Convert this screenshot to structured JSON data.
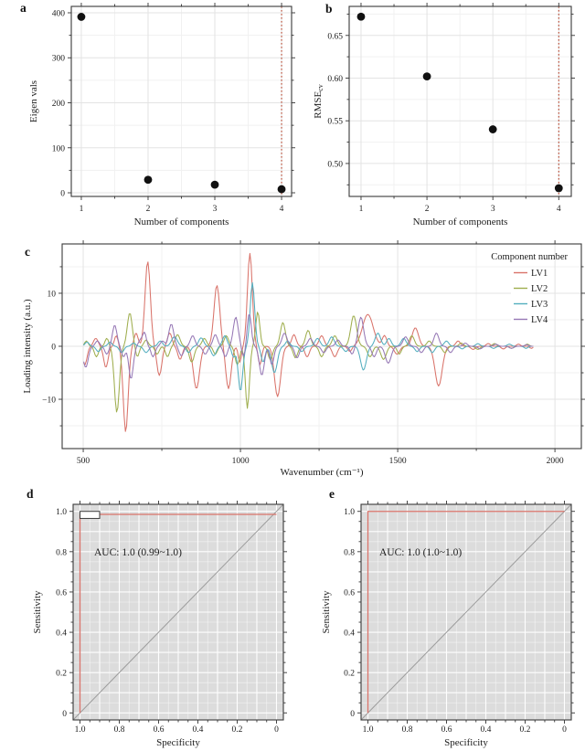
{
  "figure": {
    "panels": {
      "a": {
        "label": "a"
      },
      "b": {
        "label": "b"
      },
      "c": {
        "label": "c"
      },
      "d": {
        "label": "d"
      },
      "e": {
        "label": "e"
      }
    }
  },
  "chart_data": [
    {
      "panel": "a",
      "type": "scatter",
      "xlabel": "Number of components",
      "ylabel": "Eigen vals",
      "x": [
        1,
        2,
        3,
        4
      ],
      "y": [
        391,
        29,
        18,
        8
      ],
      "xticks": [
        1,
        2,
        3,
        4
      ],
      "xtick_labels": [
        "1",
        "2",
        "3",
        "4"
      ],
      "xticks_minor": [
        1.5,
        2.5,
        3.5
      ],
      "yticks": [
        0,
        100,
        200,
        300,
        400
      ],
      "ytick_labels": [
        "0",
        "100",
        "200",
        "300",
        "400"
      ],
      "yticks_minor": [
        50,
        150,
        250,
        350
      ],
      "xlim": [
        0.85,
        4.15
      ],
      "ylim": [
        -8.1,
        414.2
      ],
      "vline_x": 4,
      "vline_color": "#b5432c",
      "point_color": "#111111",
      "grid": true
    },
    {
      "panel": "b",
      "type": "scatter",
      "xlabel": "Number of components",
      "ylabel": "RMSE",
      "ylabel_sub": "cv",
      "x": [
        1,
        2,
        3,
        4
      ],
      "y": [
        0.672,
        0.602,
        0.54,
        0.471
      ],
      "xticks": [
        1,
        2,
        3,
        4
      ],
      "xtick_labels": [
        "1",
        "2",
        "3",
        "4"
      ],
      "xticks_minor": [
        1.5,
        2.5,
        3.5
      ],
      "yticks": [
        0.5,
        0.55,
        0.6,
        0.65
      ],
      "ytick_labels": [
        "0.50",
        "0.55",
        "0.60",
        "0.65"
      ],
      "yticks_minor": [
        0.475,
        0.525,
        0.575,
        0.625,
        0.675
      ],
      "xlim": [
        0.82,
        4.19
      ],
      "ylim": [
        0.4614,
        0.684
      ],
      "vline_x": 4,
      "vline_color": "#b5432c",
      "point_color": "#111111",
      "grid": true
    },
    {
      "panel": "c",
      "type": "line",
      "xlabel": "Wavenumber (cm⁻¹)",
      "ylabel": "Loading intensity (a.u.)",
      "legend_title": "Component number",
      "xticks": [
        500,
        1000,
        1500,
        2000
      ],
      "xtick_labels": [
        "500",
        "1000",
        "1500",
        "2000"
      ],
      "xticks_minor": [
        750,
        1250,
        1750
      ],
      "yticks": [
        -10,
        0,
        10
      ],
      "ytick_labels": [
        "−10",
        "0",
        "10"
      ],
      "yticks_minor": [
        -15,
        -5,
        5,
        15
      ],
      "xlim": [
        433,
        2084
      ],
      "ylim": [
        -19.3,
        19.3
      ],
      "x_range": [
        502,
        1932
      ],
      "x_step": 4,
      "series": [
        {
          "name": "LV1",
          "color": "#d9736a",
          "peaks": [
            [
              505,
              -3.5,
              10
            ],
            [
              540,
              1.5,
              10
            ],
            [
              572,
              -4,
              10
            ],
            [
              605,
              2,
              8
            ],
            [
              635,
              -16.2,
              11
            ],
            [
              668,
              2.5,
              9
            ],
            [
              705,
              16,
              12
            ],
            [
              742,
              -5.5,
              11
            ],
            [
              775,
              2.5,
              10
            ],
            [
              808,
              -2.5,
              10
            ],
            [
              860,
              -8,
              14
            ],
            [
              925,
              11.5,
              13
            ],
            [
              962,
              -8,
              12
            ],
            [
              998,
              -3,
              7
            ],
            [
              1030,
              17.5,
              11
            ],
            [
              1062,
              -3.5,
              8
            ],
            [
              1118,
              -9.5,
              14
            ],
            [
              1170,
              2.2,
              10
            ],
            [
              1212,
              -2,
              10
            ],
            [
              1258,
              2,
              11
            ],
            [
              1300,
              -2,
              11
            ],
            [
              1348,
              -1,
              9
            ],
            [
              1405,
              6,
              24
            ],
            [
              1458,
              2,
              10
            ],
            [
              1498,
              -1.5,
              12
            ],
            [
              1556,
              3.5,
              14
            ],
            [
              1630,
              -7.5,
              16
            ],
            [
              1692,
              1,
              10
            ],
            [
              1740,
              -0.6,
              10
            ],
            [
              1788,
              0.5,
              9
            ],
            [
              1836,
              -0.5,
              9
            ],
            [
              1884,
              0.4,
              8
            ],
            [
              1925,
              -0.4,
              7
            ]
          ]
        },
        {
          "name": "LV2",
          "color": "#9fae4e",
          "peaks": [
            [
              510,
              1,
              8
            ],
            [
              542,
              -2,
              9
            ],
            [
              575,
              1.5,
              8
            ],
            [
              607,
              -12.5,
              11
            ],
            [
              648,
              6.3,
              11
            ],
            [
              672,
              -2,
              8
            ],
            [
              700,
              1.2,
              9
            ],
            [
              735,
              -1.5,
              9
            ],
            [
              768,
              -2,
              9
            ],
            [
              800,
              2.2,
              11
            ],
            [
              845,
              -3,
              11
            ],
            [
              885,
              1.5,
              10
            ],
            [
              920,
              -1.5,
              9
            ],
            [
              955,
              2,
              10
            ],
            [
              990,
              -3.5,
              10
            ],
            [
              1022,
              -11.7,
              9
            ],
            [
              1055,
              6.5,
              9
            ],
            [
              1095,
              -2.5,
              10
            ],
            [
              1135,
              4.5,
              11
            ],
            [
              1175,
              -2.2,
              10
            ],
            [
              1215,
              3,
              11
            ],
            [
              1258,
              -2,
              10
            ],
            [
              1300,
              2,
              11
            ],
            [
              1360,
              5.8,
              13
            ],
            [
              1412,
              -2,
              11
            ],
            [
              1455,
              -2.5,
              12
            ],
            [
              1505,
              -1.5,
              9
            ],
            [
              1545,
              2,
              11
            ],
            [
              1600,
              1,
              10
            ],
            [
              1650,
              -1.2,
              10
            ],
            [
              1702,
              0.6,
              9
            ],
            [
              1755,
              -0.6,
              10
            ],
            [
              1808,
              0.5,
              9
            ],
            [
              1862,
              -0.4,
              9
            ],
            [
              1912,
              0.4,
              8
            ]
          ]
        },
        {
          "name": "LV3",
          "color": "#53aebf",
          "peaks": [
            [
              512,
              0.8,
              9
            ],
            [
              548,
              -1,
              10
            ],
            [
              585,
              0.8,
              9
            ],
            [
              622,
              -1.2,
              10
            ],
            [
              660,
              0.6,
              9
            ],
            [
              700,
              -1.2,
              11
            ],
            [
              745,
              1,
              10
            ],
            [
              790,
              1.8,
              13
            ],
            [
              835,
              -1.2,
              10
            ],
            [
              875,
              1.6,
              11
            ],
            [
              915,
              -1.8,
              11
            ],
            [
              950,
              2,
              10
            ],
            [
              978,
              -2,
              8
            ],
            [
              1000,
              -8.5,
              10
            ],
            [
              1038,
              12,
              10
            ],
            [
              1072,
              -3,
              9
            ],
            [
              1108,
              -5,
              13
            ],
            [
              1150,
              1,
              9
            ],
            [
              1195,
              -1,
              10
            ],
            [
              1245,
              1.5,
              11
            ],
            [
              1290,
              1.8,
              11
            ],
            [
              1335,
              -1,
              10
            ],
            [
              1391,
              -4.5,
              13
            ],
            [
              1437,
              2.5,
              12
            ],
            [
              1472,
              1.5,
              10
            ],
            [
              1519,
              1.5,
              11
            ],
            [
              1562,
              -1,
              10
            ],
            [
              1610,
              -1.2,
              10
            ],
            [
              1655,
              1,
              10
            ],
            [
              1705,
              -0.5,
              9
            ],
            [
              1755,
              0.5,
              9
            ],
            [
              1805,
              -0.4,
              9
            ],
            [
              1855,
              0.4,
              9
            ],
            [
              1908,
              -0.4,
              8
            ]
          ]
        },
        {
          "name": "LV4",
          "color": "#9678b5",
          "peaks": [
            [
              508,
              -4,
              11
            ],
            [
              545,
              1,
              9
            ],
            [
              575,
              -1.5,
              9
            ],
            [
              600,
              4,
              10
            ],
            [
              628,
              -2,
              8
            ],
            [
              652,
              -6.2,
              10
            ],
            [
              682,
              1.2,
              9
            ],
            [
              695,
              2.5,
              8
            ],
            [
              722,
              -2,
              9
            ],
            [
              752,
              1,
              9
            ],
            [
              780,
              4.2,
              11
            ],
            [
              812,
              -1.8,
              10
            ],
            [
              848,
              2,
              10
            ],
            [
              888,
              -1.5,
              10
            ],
            [
              920,
              2.2,
              10
            ],
            [
              952,
              -2,
              9
            ],
            [
              985,
              5.5,
              11
            ],
            [
              1010,
              -2,
              7
            ],
            [
              1028,
              6.2,
              9
            ],
            [
              1068,
              -5.5,
              11
            ],
            [
              1100,
              -3.5,
              9
            ],
            [
              1140,
              2.5,
              11
            ],
            [
              1180,
              -2.2,
              10
            ],
            [
              1222,
              1.5,
              10
            ],
            [
              1265,
              -1.2,
              10
            ],
            [
              1310,
              1.2,
              10
            ],
            [
              1355,
              -1.5,
              9
            ],
            [
              1383,
              5.5,
              12
            ],
            [
              1425,
              -2,
              10
            ],
            [
              1470,
              -3.2,
              13
            ],
            [
              1525,
              1.8,
              11
            ],
            [
              1575,
              -1.2,
              10
            ],
            [
              1623,
              2.5,
              11
            ],
            [
              1668,
              -1.2,
              10
            ],
            [
              1715,
              0.6,
              9
            ],
            [
              1762,
              -0.5,
              9
            ],
            [
              1812,
              0.4,
              9
            ],
            [
              1862,
              -0.4,
              9
            ],
            [
              1910,
              0.3,
              8
            ]
          ]
        }
      ]
    },
    {
      "panel": "d",
      "type": "roc",
      "xlabel": "Specificity",
      "ylabel": "Sensitivity",
      "auc_label": "AUC: 1.0 (0.99~1.0)",
      "xticks": [
        1.0,
        0.8,
        0.6,
        0.4,
        0.2,
        0
      ],
      "xtick_labels": [
        "1.0",
        "0.8",
        "0.6",
        "0.4",
        "0.2",
        "0"
      ],
      "yticks": [
        0,
        0.2,
        0.4,
        0.6,
        0.8,
        1.0
      ],
      "ytick_labels": [
        "0",
        "0.2",
        "0.4",
        "0.6",
        "0.8",
        "1.0"
      ],
      "ticks_minor": [
        0.05,
        0.1,
        0.15,
        0.25,
        0.3,
        0.35,
        0.45,
        0.5,
        0.55,
        0.65,
        0.7,
        0.75,
        0.85,
        0.9,
        0.95
      ],
      "sens_level": 0.985,
      "notch": {
        "spec_to": 0.9,
        "sens_bottom": 0.965
      },
      "curve_color": "#d9736a",
      "area_fill": "#dcdcdc",
      "diagonal_color": "#9c9c9c"
    },
    {
      "panel": "e",
      "type": "roc",
      "xlabel": "Specificity",
      "ylabel": "Sensitivity",
      "auc_label": "AUC: 1.0 (1.0~1.0)",
      "xticks": [
        1.0,
        0.8,
        0.6,
        0.4,
        0.2,
        0
      ],
      "xtick_labels": [
        "1.0",
        "0.8",
        "0.6",
        "0.4",
        "0.2",
        "0"
      ],
      "yticks": [
        0,
        0.2,
        0.4,
        0.6,
        0.8,
        1.0
      ],
      "ytick_labels": [
        "0",
        "0.2",
        "0.4",
        "0.6",
        "0.8",
        "1.0"
      ],
      "ticks_minor": [
        0.05,
        0.1,
        0.15,
        0.25,
        0.3,
        0.35,
        0.45,
        0.5,
        0.55,
        0.65,
        0.7,
        0.75,
        0.85,
        0.9,
        0.95
      ],
      "sens_level": 1.0,
      "notch": null,
      "curve_color": "#d9736a",
      "area_fill": "#dcdcdc",
      "diagonal_color": "#9c9c9c"
    }
  ]
}
